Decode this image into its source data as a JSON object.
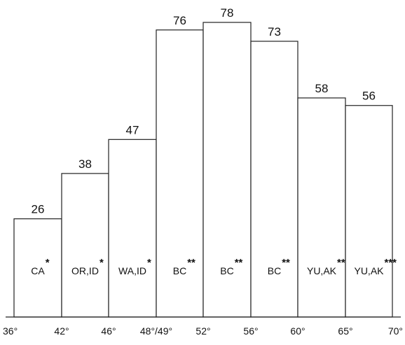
{
  "chart_data": {
    "type": "bar",
    "xlabel": "",
    "ylabel": "",
    "grid": false,
    "tick_labels": [
      "36°",
      "42°",
      "46°",
      "48°/49°",
      "52°",
      "56°",
      "60°",
      "65°",
      "70°"
    ],
    "bars": [
      {
        "region": "CA",
        "stars": "*",
        "value": 26
      },
      {
        "region": "OR,ID",
        "stars": "*",
        "value": 38
      },
      {
        "region": "WA,ID",
        "stars": "*",
        "value": 47
      },
      {
        "region": "BC",
        "stars": "**",
        "value": 76
      },
      {
        "region": "BC",
        "stars": "**",
        "value": 78
      },
      {
        "region": "BC",
        "stars": "**",
        "value": 73
      },
      {
        "region": "YU,AK",
        "stars": "***",
        "value": 58
      },
      {
        "region": "YU,AK",
        "stars": "***",
        "value": 56
      }
    ]
  }
}
